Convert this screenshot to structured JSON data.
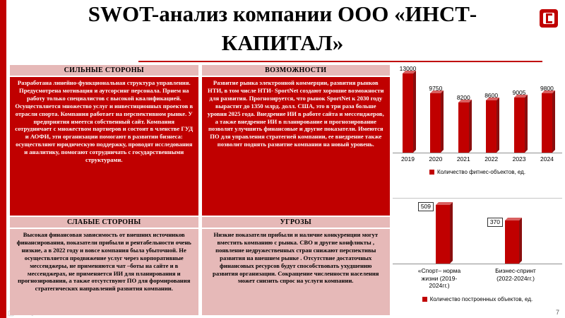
{
  "slide": {
    "title_line1": "SWOT-анализ  компании ООО «ИНСТ-",
    "title_line2": "КАПИТАЛ»",
    "page_number": "7"
  },
  "colors": {
    "accent": "#C00000",
    "pink": "#E6B9B8"
  },
  "swot": {
    "strengths": {
      "header": "СИЛЬНЫЕ СТОРОНЫ",
      "body": "Разработана линейно-функциональная структура управления. Предусмотрена мотивация и аутсорсинг персонала. Прием на работу только специалистов с высокой квалификацией. Осуществляется множество услуг и инвестиционных проектов в отрасли спорта. Компания работает на перспективном рынке. У предприятия имеется собственный сайт. Компания сотрудничает с множеством партнеров и состоит в членстве ГУД и АОФИ, эти  организации помогают в развитии бизнеса: осуществляют юридическую поддержку, проводят исследования и аналитику, помогают сотрудничать с государственными структурами."
    },
    "opportunities": {
      "header": "ВОЗМОЖНОСТИ",
      "body": "Развитие рынка электронной коммерции, развития рынков НТИ, в том числе НТИ- SportNet создают хорошие возможности для развития. Прогнозируется, что рынок SportNet к 2030 году вырастит до 1350 млрд. долл. США, это в три раза больше уровня 2025 года. Внедрение ИИ в работе сайта и мессенджеров, а также внедрение ИИ в планирование и прогнозирование позволят улучшить финансовые и другие показатели. Имеются  ПО для управления стратегией компании, ее внедрение также позволит поднять развитие компании на новый уровень."
    },
    "weaknesses": {
      "header": "СЛАБЫЕ СТОРОНЫ",
      "body": "Высокая финансовая зависимость от внешних источников финансирования, показатели прибыли и рентабельности очень низкие, а в 2022 году и вовсе компания была убыточной.  Не осуществляется продвижение услуг через корпоративные мессенджеры, не применяются чат –боты на сайте и в мессенджерах, не применяется ИИ для планирования и прогнозирования, а также отсутствуют ПО для формирования стратегических направлений развития компании."
    },
    "threats": {
      "header": "УГРОЗЫ",
      "body": "Низкие показатели прибыли и наличие конкуренции могут вместить компанию с рынка.  СВО и другие конфликты , появление недружественных стран снижают перспективы развития на внешнем рынке .  Отсутствие достаточных финансовых ресурсов будут способствовать ухудшению развития организации.  Сокращение численности населения может снизить спрос на услуги компании."
    }
  },
  "chart_data": [
    {
      "type": "bar",
      "categories": [
        "2019",
        "2020",
        "2021",
        "2022",
        "2023",
        "2024"
      ],
      "values": [
        13000,
        9750,
        8200,
        8600,
        9005,
        9800
      ],
      "title": "",
      "xlabel": "",
      "ylabel": "",
      "ylim": [
        0,
        13000
      ],
      "legend": "Количество фитнес-объектов,  ед.",
      "legend_position": "bottom",
      "grid": false,
      "bar_color": "#C00000",
      "style": "3d"
    },
    {
      "type": "bar",
      "categories": [
        "«Спорт– норма\nжизни (2019-\n2024гг.)",
        "Бизнес-спринт\n(2022-2024гг.)"
      ],
      "values": [
        509,
        370
      ],
      "title": "",
      "xlabel": "",
      "ylabel": "",
      "ylim": [
        0,
        550
      ],
      "legend": "Количество построенных объектов, ед.",
      "legend_position": "bottom",
      "grid": false,
      "bar_color": "#C00000",
      "style": "3d",
      "data_labels": "boxed"
    }
  ],
  "overlay_icons": {
    "icon1": "▢",
    "icon2": "↻",
    "icon3": "◁"
  }
}
